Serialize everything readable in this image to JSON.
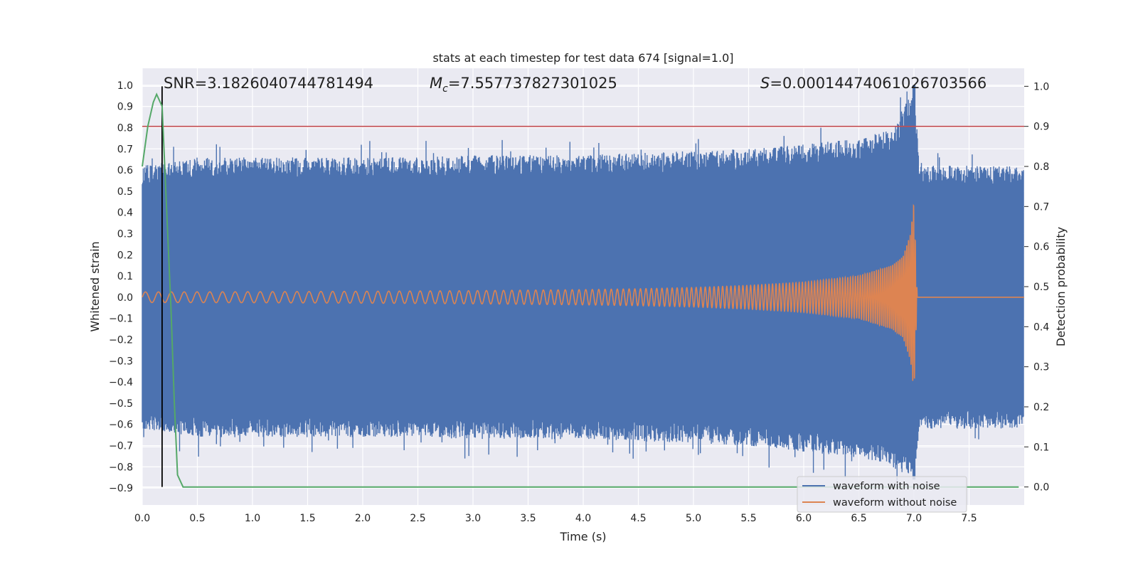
{
  "chart_data": {
    "type": "line",
    "title": "stats at each timestep for test data 674 [signal=1.0]",
    "xlabel": "Time (s)",
    "ylabel": "Whitened strain",
    "y2label": "Detection probability",
    "xlim": [
      0.0,
      8.0
    ],
    "ylim": [
      -0.98,
      1.08
    ],
    "y2lim": [
      -0.045,
      1.045
    ],
    "xticks": [
      "0.0",
      "0.5",
      "1.0",
      "1.5",
      "2.0",
      "2.5",
      "3.0",
      "3.5",
      "4.0",
      "4.5",
      "5.0",
      "5.5",
      "6.0",
      "6.5",
      "7.0",
      "7.5"
    ],
    "yticks": [
      "−0.9",
      "−0.8",
      "−0.7",
      "−0.6",
      "−0.5",
      "−0.4",
      "−0.3",
      "−0.2",
      "−0.1",
      "0.0",
      "0.1",
      "0.2",
      "0.3",
      "0.4",
      "0.5",
      "0.6",
      "0.7",
      "0.8",
      "0.9",
      "1.0"
    ],
    "y2ticks": [
      "0.0",
      "0.1",
      "0.2",
      "0.3",
      "0.4",
      "0.5",
      "0.6",
      "0.7",
      "0.8",
      "0.9",
      "1.0"
    ],
    "grid": true,
    "legend_position": "lower-right",
    "annotations": {
      "snr": "SNR=3.1826040744781494",
      "mc_symbol": "M",
      "mc_sub": "c",
      "mc_value": "=7.557737827301025",
      "s_symbol": "S",
      "s_value": "=0.00014474061026703566"
    },
    "series": [
      {
        "name": "waveform with noise",
        "color": "#4c72b0",
        "axis": "left",
        "band_upper": [
          [
            0.0,
            0.62
          ],
          [
            0.5,
            0.66
          ],
          [
            1.0,
            0.66
          ],
          [
            1.5,
            0.66
          ],
          [
            2.0,
            0.66
          ],
          [
            2.5,
            0.66
          ],
          [
            3.0,
            0.67
          ],
          [
            3.5,
            0.67
          ],
          [
            4.0,
            0.67
          ],
          [
            4.5,
            0.68
          ],
          [
            5.0,
            0.69
          ],
          [
            5.5,
            0.7
          ],
          [
            6.0,
            0.72
          ],
          [
            6.5,
            0.75
          ],
          [
            6.8,
            0.79
          ],
          [
            7.0,
            1.0
          ],
          [
            7.05,
            0.62
          ],
          [
            7.5,
            0.62
          ],
          [
            8.0,
            0.62
          ]
        ],
        "band_lower": [
          [
            0.0,
            -0.62
          ],
          [
            0.5,
            -0.66
          ],
          [
            1.0,
            -0.66
          ],
          [
            1.5,
            -0.66
          ],
          [
            2.0,
            -0.66
          ],
          [
            2.5,
            -0.66
          ],
          [
            3.0,
            -0.67
          ],
          [
            3.5,
            -0.67
          ],
          [
            4.0,
            -0.67
          ],
          [
            4.5,
            -0.68
          ],
          [
            5.0,
            -0.69
          ],
          [
            5.5,
            -0.7
          ],
          [
            6.0,
            -0.73
          ],
          [
            6.5,
            -0.76
          ],
          [
            6.8,
            -0.8
          ],
          [
            7.0,
            -0.86
          ],
          [
            7.05,
            -0.62
          ],
          [
            7.5,
            -0.62
          ],
          [
            8.0,
            -0.62
          ]
        ]
      },
      {
        "name": "waveform without noise",
        "color": "#dd8452",
        "axis": "left",
        "envelope": [
          [
            0.0,
            0.025
          ],
          [
            1.0,
            0.026
          ],
          [
            2.0,
            0.028
          ],
          [
            3.0,
            0.031
          ],
          [
            4.0,
            0.036
          ],
          [
            4.5,
            0.04
          ],
          [
            5.0,
            0.046
          ],
          [
            5.5,
            0.056
          ],
          [
            6.0,
            0.071
          ],
          [
            6.5,
            0.1
          ],
          [
            6.8,
            0.15
          ],
          [
            6.9,
            0.19
          ],
          [
            6.97,
            0.3
          ],
          [
            7.0,
            0.45
          ],
          [
            7.03,
            0.0
          ],
          [
            8.0,
            0.0
          ]
        ],
        "chirp_start_hz": 6,
        "chirp_end_hz": 40
      },
      {
        "name": "detection probability",
        "color": "#55a868",
        "axis": "right",
        "x": [
          0.0,
          0.05,
          0.1,
          0.13,
          0.18,
          0.22,
          0.26,
          0.29,
          0.32,
          0.37,
          7.95
        ],
        "y": [
          0.8,
          0.9,
          0.96,
          0.98,
          0.95,
          0.7,
          0.45,
          0.22,
          0.03,
          0.0,
          0.0
        ]
      }
    ],
    "threshold_line": {
      "axis": "right",
      "value": 0.9,
      "color": "#c44e52"
    },
    "marker_line": {
      "x": 0.18,
      "color": "#000000"
    }
  }
}
